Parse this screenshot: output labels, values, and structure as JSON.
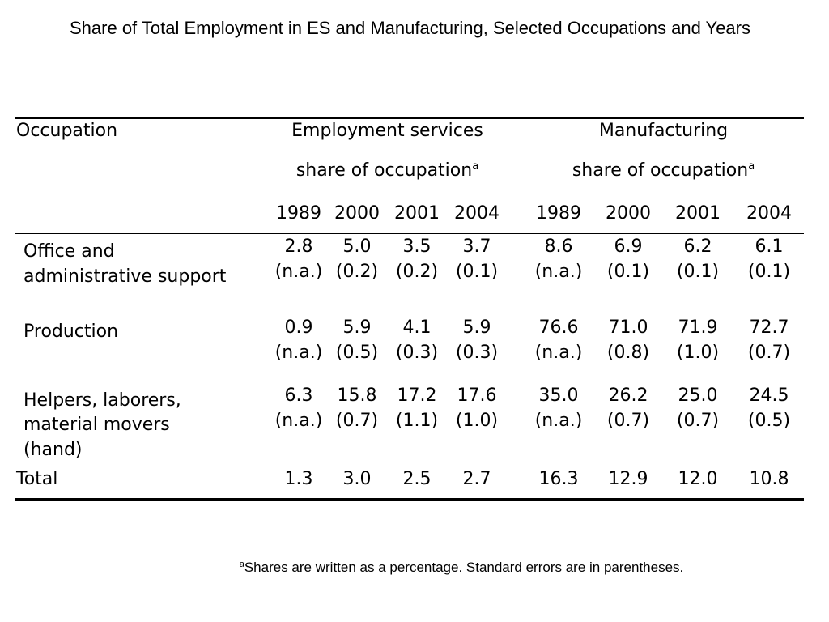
{
  "title": "Share of Total Employment in ES and Manufacturing, Selected Occupations and Years",
  "table": {
    "stub_header": "Occupation",
    "groups": [
      {
        "label": "Employment services",
        "sublabel": "share of occupation",
        "sup": "a"
      },
      {
        "label": "Manufacturing",
        "sublabel": "share of occupation",
        "sup": "a"
      }
    ],
    "years": [
      "1989",
      "2000",
      "2001",
      "2004",
      "1989",
      "2000",
      "2001",
      "2004"
    ],
    "rows": [
      {
        "lines": [
          "Office and",
          "administrative support"
        ],
        "values": [
          "2.8",
          "5.0",
          "3.5",
          "3.7",
          "8.6",
          "6.9",
          "6.2",
          "6.1"
        ],
        "errors": [
          "(n.a.)",
          "(0.2)",
          "(0.2)",
          "(0.1)",
          "(n.a.)",
          "(0.1)",
          "(0.1)",
          "(0.1)"
        ]
      },
      {
        "lines": [
          "Production"
        ],
        "values": [
          "0.9",
          "5.9",
          "4.1",
          "5.9",
          "76.6",
          "71.0",
          "71.9",
          "72.7"
        ],
        "errors": [
          "(n.a.)",
          "(0.5)",
          "(0.3)",
          "(0.3)",
          "(n.a.)",
          "(0.8)",
          "(1.0)",
          "(0.7)"
        ]
      },
      {
        "lines": [
          "Helpers, laborers,",
          "material movers",
          "(hand)"
        ],
        "values": [
          "6.3",
          "15.8",
          "17.2",
          "17.6",
          "35.0",
          "26.2",
          "25.0",
          "24.5"
        ],
        "errors": [
          "(n.a.)",
          "(0.7)",
          "(1.1)",
          "(1.0)",
          "(n.a.)",
          "(0.7)",
          "(0.7)",
          "(0.5)"
        ]
      }
    ],
    "total": {
      "label": "Total",
      "values": [
        "1.3",
        "3.0",
        "2.5",
        "2.7",
        "16.3",
        "12.9",
        "12.0",
        "10.8"
      ]
    }
  },
  "footnote": {
    "marker": "a",
    "text": "Shares are written as a percentage. Standard errors are in parentheses."
  }
}
